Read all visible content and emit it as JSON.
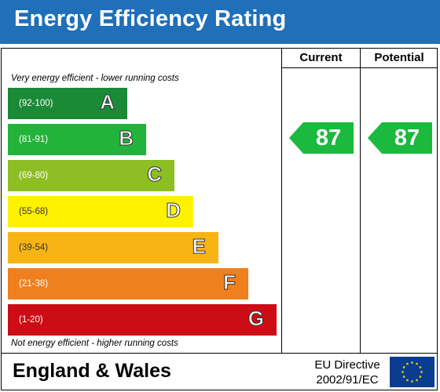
{
  "header": {
    "title": "Energy Efficiency Rating"
  },
  "columns": {
    "current": "Current",
    "potential": "Potential"
  },
  "top_caption": "Very energy efficient - lower running costs",
  "bottom_caption": "Not energy efficient - higher running costs",
  "bands": [
    {
      "letter": "A",
      "range": "(92-100)",
      "color": "#1a8a36"
    },
    {
      "letter": "B",
      "range": "(81-91)",
      "color": "#22b33b"
    },
    {
      "letter": "C",
      "range": "(69-80)",
      "color": "#8dbe23"
    },
    {
      "letter": "D",
      "range": "(55-68)",
      "color": "#fff200"
    },
    {
      "letter": "E",
      "range": "(39-54)",
      "color": "#f8b415"
    },
    {
      "letter": "F",
      "range": "(21-38)",
      "color": "#f07f1d"
    },
    {
      "letter": "G",
      "range": "(1-20)",
      "color": "#cc0d16"
    }
  ],
  "ratings": {
    "current": {
      "value": "87",
      "band": "B",
      "color": "#1bb93d"
    },
    "potential": {
      "value": "87",
      "band": "B",
      "color": "#1bb93d"
    }
  },
  "footer": {
    "country": "England & Wales",
    "directive_line1": "EU Directive",
    "directive_line2": "2002/91/EC",
    "flag_icon": "eu-flag-icon"
  },
  "colors": {
    "header_bg": "#1f6fb9",
    "eu_blue": "#0a3d8f",
    "eu_star": "#ffdd00"
  }
}
